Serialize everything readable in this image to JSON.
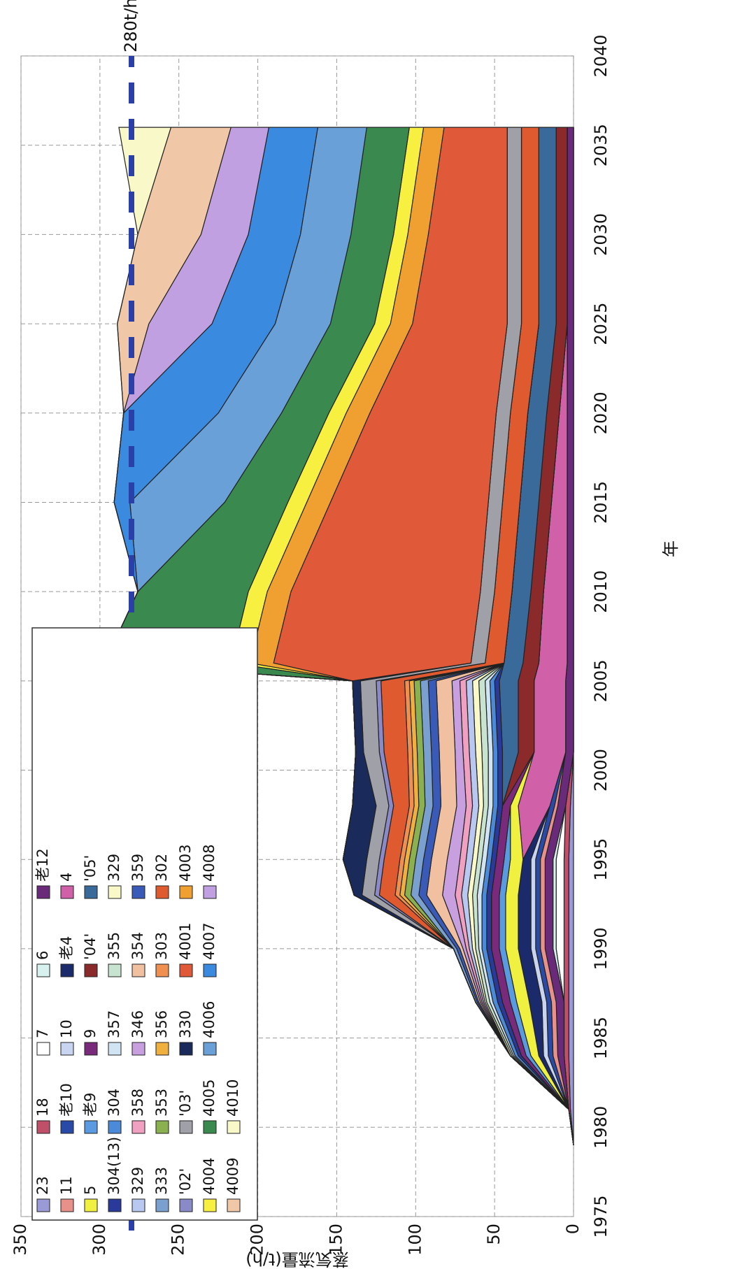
{
  "chart_data": {
    "type": "stacked_area",
    "x_label": "年",
    "y_label": "蒸気流量(t/h)",
    "xlim": [
      1975,
      2040
    ],
    "ylim": [
      0,
      350
    ],
    "xticks": [
      1975,
      1980,
      1985,
      1990,
      1995,
      2000,
      2005,
      2010,
      2015,
      2020,
      2025,
      2030,
      2035,
      2040
    ],
    "yticks": [
      0,
      50,
      100,
      150,
      200,
      250,
      300,
      350
    ],
    "grid": true,
    "reference_line": {
      "value": 280,
      "label": "280t/h",
      "color": "#2a3fa8"
    },
    "x": [
      1979,
      1981,
      1984,
      1987,
      1990,
      1993,
      1995,
      1998,
      2001,
      2005,
      2006,
      2010,
      2015,
      2020,
      2025,
      2030,
      2036
    ],
    "series": [
      {
        "name": "23",
        "color": "#9a9ad6",
        "values": [
          0,
          2,
          3,
          3,
          3,
          3,
          3,
          2,
          0,
          0,
          0,
          0,
          0,
          0,
          0,
          0,
          0
        ]
      },
      {
        "name": "18",
        "color": "#c0506a",
        "values": [
          0,
          1,
          3,
          3,
          3,
          3,
          3,
          3,
          0,
          0,
          0,
          0,
          0,
          0,
          0,
          0,
          0
        ]
      },
      {
        "name": "7",
        "color": "#ffffff",
        "values": [
          0,
          0,
          0,
          0,
          5,
          5,
          5,
          0,
          0,
          0,
          0,
          0,
          0,
          0,
          0,
          0,
          0
        ]
      },
      {
        "name": "6",
        "color": "#d8f0ee",
        "values": [
          0,
          0,
          0,
          0,
          2,
          2,
          2,
          0,
          0,
          0,
          0,
          0,
          0,
          0,
          0,
          0,
          0
        ]
      },
      {
        "name": "老12",
        "color": "#6a2a7a",
        "values": [
          0,
          0,
          4,
          5,
          5,
          5,
          5,
          5,
          5,
          5,
          4,
          4,
          4,
          4,
          4,
          4,
          4
        ]
      },
      {
        "name": "11",
        "color": "#e8908a",
        "values": [
          0,
          0,
          3,
          3,
          3,
          3,
          3,
          2,
          0,
          0,
          0,
          0,
          0,
          0,
          0,
          0,
          0
        ]
      },
      {
        "name": "老10",
        "color": "#2a4aa8",
        "values": [
          0,
          0,
          3,
          3,
          3,
          3,
          3,
          3,
          0,
          0,
          0,
          0,
          0,
          0,
          0,
          0,
          0
        ]
      },
      {
        "name": "10",
        "color": "#c8d4f0",
        "values": [
          0,
          0,
          3,
          3,
          3,
          3,
          3,
          0,
          0,
          0,
          0,
          0,
          0,
          0,
          0,
          0,
          0
        ]
      },
      {
        "name": "老4",
        "color": "#1a2a6a",
        "values": [
          0,
          0,
          3,
          8,
          8,
          8,
          5,
          0,
          0,
          0,
          0,
          0,
          0,
          0,
          0,
          0,
          0
        ]
      },
      {
        "name": "4",
        "color": "#d060a8",
        "values": [
          0,
          0,
          0,
          0,
          0,
          0,
          0,
          20,
          20,
          20,
          18,
          15,
          10,
          5,
          0,
          0,
          0
        ]
      },
      {
        "name": "5",
        "color": "#f0f040",
        "values": [
          0,
          0,
          5,
          8,
          8,
          8,
          8,
          5,
          0,
          0,
          0,
          0,
          0,
          0,
          0,
          0,
          0
        ]
      },
      {
        "name": "老9",
        "color": "#5a9ae0",
        "values": [
          0,
          0,
          3,
          4,
          4,
          4,
          4,
          0,
          0,
          0,
          0,
          0,
          0,
          0,
          0,
          0,
          0
        ]
      },
      {
        "name": "9",
        "color": "#7a2a7a",
        "values": [
          0,
          0,
          3,
          5,
          5,
          5,
          5,
          5,
          0,
          0,
          0,
          0,
          0,
          0,
          0,
          0,
          0
        ]
      },
      {
        "name": "'04'",
        "color": "#8a2a2a",
        "values": [
          0,
          0,
          0,
          0,
          0,
          0,
          0,
          0,
          10,
          10,
          10,
          8,
          8,
          8,
          7,
          7,
          7
        ]
      },
      {
        "name": "'05'",
        "color": "#3a6a9a",
        "values": [
          0,
          0,
          0,
          0,
          0,
          0,
          0,
          0,
          10,
          12,
          12,
          12,
          12,
          12,
          11,
          11,
          11
        ]
      },
      {
        "name": "304(13)",
        "color": "#2a3a9a",
        "values": [
          0,
          0,
          2,
          3,
          3,
          3,
          3,
          3,
          3,
          3,
          0,
          0,
          0,
          0,
          0,
          0,
          0
        ]
      },
      {
        "name": "304",
        "color": "#4a8ad8",
        "values": [
          0,
          0,
          2,
          3,
          3,
          3,
          3,
          3,
          3,
          3,
          0,
          0,
          0,
          0,
          0,
          0,
          0
        ]
      },
      {
        "name": "357",
        "color": "#d0e4f4",
        "values": [
          0,
          0,
          1,
          2,
          2,
          3,
          3,
          3,
          3,
          3,
          0,
          0,
          0,
          0,
          0,
          0,
          0
        ]
      },
      {
        "name": "355",
        "color": "#c8e4d0",
        "values": [
          0,
          0,
          1,
          2,
          2,
          3,
          3,
          3,
          4,
          4,
          0,
          0,
          0,
          0,
          0,
          0,
          0
        ]
      },
      {
        "name": "329",
        "color": "#f8f8c8",
        "values": [
          0,
          0,
          1,
          1,
          2,
          3,
          3,
          3,
          4,
          4,
          0,
          0,
          0,
          0,
          0,
          0,
          0
        ]
      },
      {
        "name": "329",
        "color": "#b8c8f0",
        "values": [
          0,
          0,
          0,
          1,
          2,
          4,
          4,
          4,
          4,
          4,
          0,
          0,
          0,
          0,
          0,
          0,
          0
        ]
      },
      {
        "name": "358",
        "color": "#f0a0c0",
        "values": [
          0,
          0,
          0,
          1,
          2,
          4,
          4,
          4,
          4,
          4,
          0,
          0,
          0,
          0,
          0,
          0,
          0
        ]
      },
      {
        "name": "346",
        "color": "#c8a0e0",
        "values": [
          0,
          0,
          0,
          1,
          2,
          8,
          8,
          6,
          5,
          5,
          0,
          0,
          0,
          0,
          0,
          0,
          0
        ]
      },
      {
        "name": "354",
        "color": "#f0c0a0",
        "values": [
          0,
          0,
          0,
          1,
          2,
          10,
          10,
          10,
          10,
          10,
          0,
          0,
          0,
          0,
          0,
          0,
          0
        ]
      },
      {
        "name": "359",
        "color": "#3a5ab8",
        "values": [
          0,
          0,
          0,
          1,
          2,
          5,
          5,
          5,
          5,
          5,
          0,
          0,
          0,
          0,
          0,
          0,
          0
        ]
      },
      {
        "name": "333",
        "color": "#7aa0d0",
        "values": [
          0,
          0,
          0,
          1,
          2,
          5,
          5,
          5,
          5,
          5,
          0,
          0,
          0,
          0,
          0,
          0,
          0
        ]
      },
      {
        "name": "353",
        "color": "#8ab050",
        "values": [
          0,
          0,
          0,
          0,
          0,
          4,
          4,
          4,
          4,
          4,
          0,
          0,
          0,
          0,
          0,
          0,
          0
        ]
      },
      {
        "name": "356",
        "color": "#f0b040",
        "values": [
          0,
          0,
          0,
          0,
          0,
          3,
          3,
          3,
          3,
          3,
          0,
          0,
          0,
          0,
          0,
          0,
          0
        ]
      },
      {
        "name": "303",
        "color": "#f09050",
        "values": [
          0,
          0,
          0,
          0,
          0,
          3,
          3,
          3,
          3,
          3,
          0,
          0,
          0,
          0,
          0,
          0,
          0
        ]
      },
      {
        "name": "302",
        "color": "#e05a30",
        "values": [
          0,
          0,
          0,
          0,
          0,
          10,
          10,
          10,
          15,
          15,
          12,
          11,
          11,
          11,
          11,
          11,
          11
        ]
      },
      {
        "name": "'02'",
        "color": "#8a8ac8",
        "values": [
          0,
          0,
          0,
          0,
          0,
          3,
          3,
          3,
          3,
          3,
          0,
          0,
          0,
          0,
          0,
          0,
          0
        ]
      },
      {
        "name": "'03'",
        "color": "#a0a0a8",
        "values": [
          0,
          0,
          0,
          0,
          0,
          8,
          8,
          8,
          10,
          10,
          9,
          9,
          9,
          9,
          9,
          9,
          9
        ]
      },
      {
        "name": "330",
        "color": "#1a2a5a",
        "values": [
          0,
          0,
          0,
          0,
          0,
          5,
          15,
          15,
          5,
          5,
          0,
          0,
          0,
          0,
          0,
          0,
          0
        ]
      },
      {
        "name": "4001",
        "color": "#e05a3a",
        "values": [
          0,
          0,
          0,
          0,
          0,
          0,
          0,
          0,
          0,
          0,
          125,
          120,
          100,
          80,
          60,
          50,
          40
        ]
      },
      {
        "name": "4003",
        "color": "#f0a030",
        "values": [
          0,
          0,
          0,
          0,
          0,
          0,
          0,
          0,
          0,
          0,
          15,
          15,
          15,
          15,
          14,
          13,
          13
        ]
      },
      {
        "name": "4004",
        "color": "#f8f040",
        "values": [
          0,
          0,
          0,
          0,
          0,
          0,
          0,
          0,
          0,
          0,
          12,
          12,
          12,
          11,
          10,
          9,
          9
        ]
      },
      {
        "name": "4005",
        "color": "#3a8a50",
        "values": [
          0,
          0,
          0,
          0,
          0,
          0,
          0,
          0,
          0,
          0,
          80,
          70,
          40,
          30,
          28,
          27,
          27
        ]
      },
      {
        "name": "4006",
        "color": "#6aa0d8",
        "values": [
          0,
          0,
          0,
          0,
          0,
          0,
          0,
          0,
          0,
          0,
          0,
          0,
          60,
          40,
          35,
          32,
          31
        ]
      },
      {
        "name": "4007",
        "color": "#3a8ae0",
        "values": [
          0,
          0,
          0,
          0,
          0,
          0,
          0,
          0,
          0,
          0,
          0,
          0,
          10,
          60,
          40,
          33,
          31
        ]
      },
      {
        "name": "4008",
        "color": "#c0a0e0",
        "values": [
          0,
          0,
          0,
          0,
          0,
          0,
          0,
          0,
          0,
          0,
          0,
          0,
          0,
          0,
          40,
          30,
          24
        ]
      },
      {
        "name": "4009",
        "color": "#f0c8a8",
        "values": [
          0,
          0,
          0,
          0,
          0,
          0,
          0,
          0,
          0,
          0,
          0,
          0,
          0,
          0,
          20,
          40,
          38
        ]
      },
      {
        "name": "4010",
        "color": "#f8f8c8",
        "values": [
          0,
          0,
          0,
          0,
          0,
          0,
          0,
          0,
          0,
          0,
          0,
          0,
          0,
          0,
          0,
          0,
          33
        ]
      }
    ]
  }
}
